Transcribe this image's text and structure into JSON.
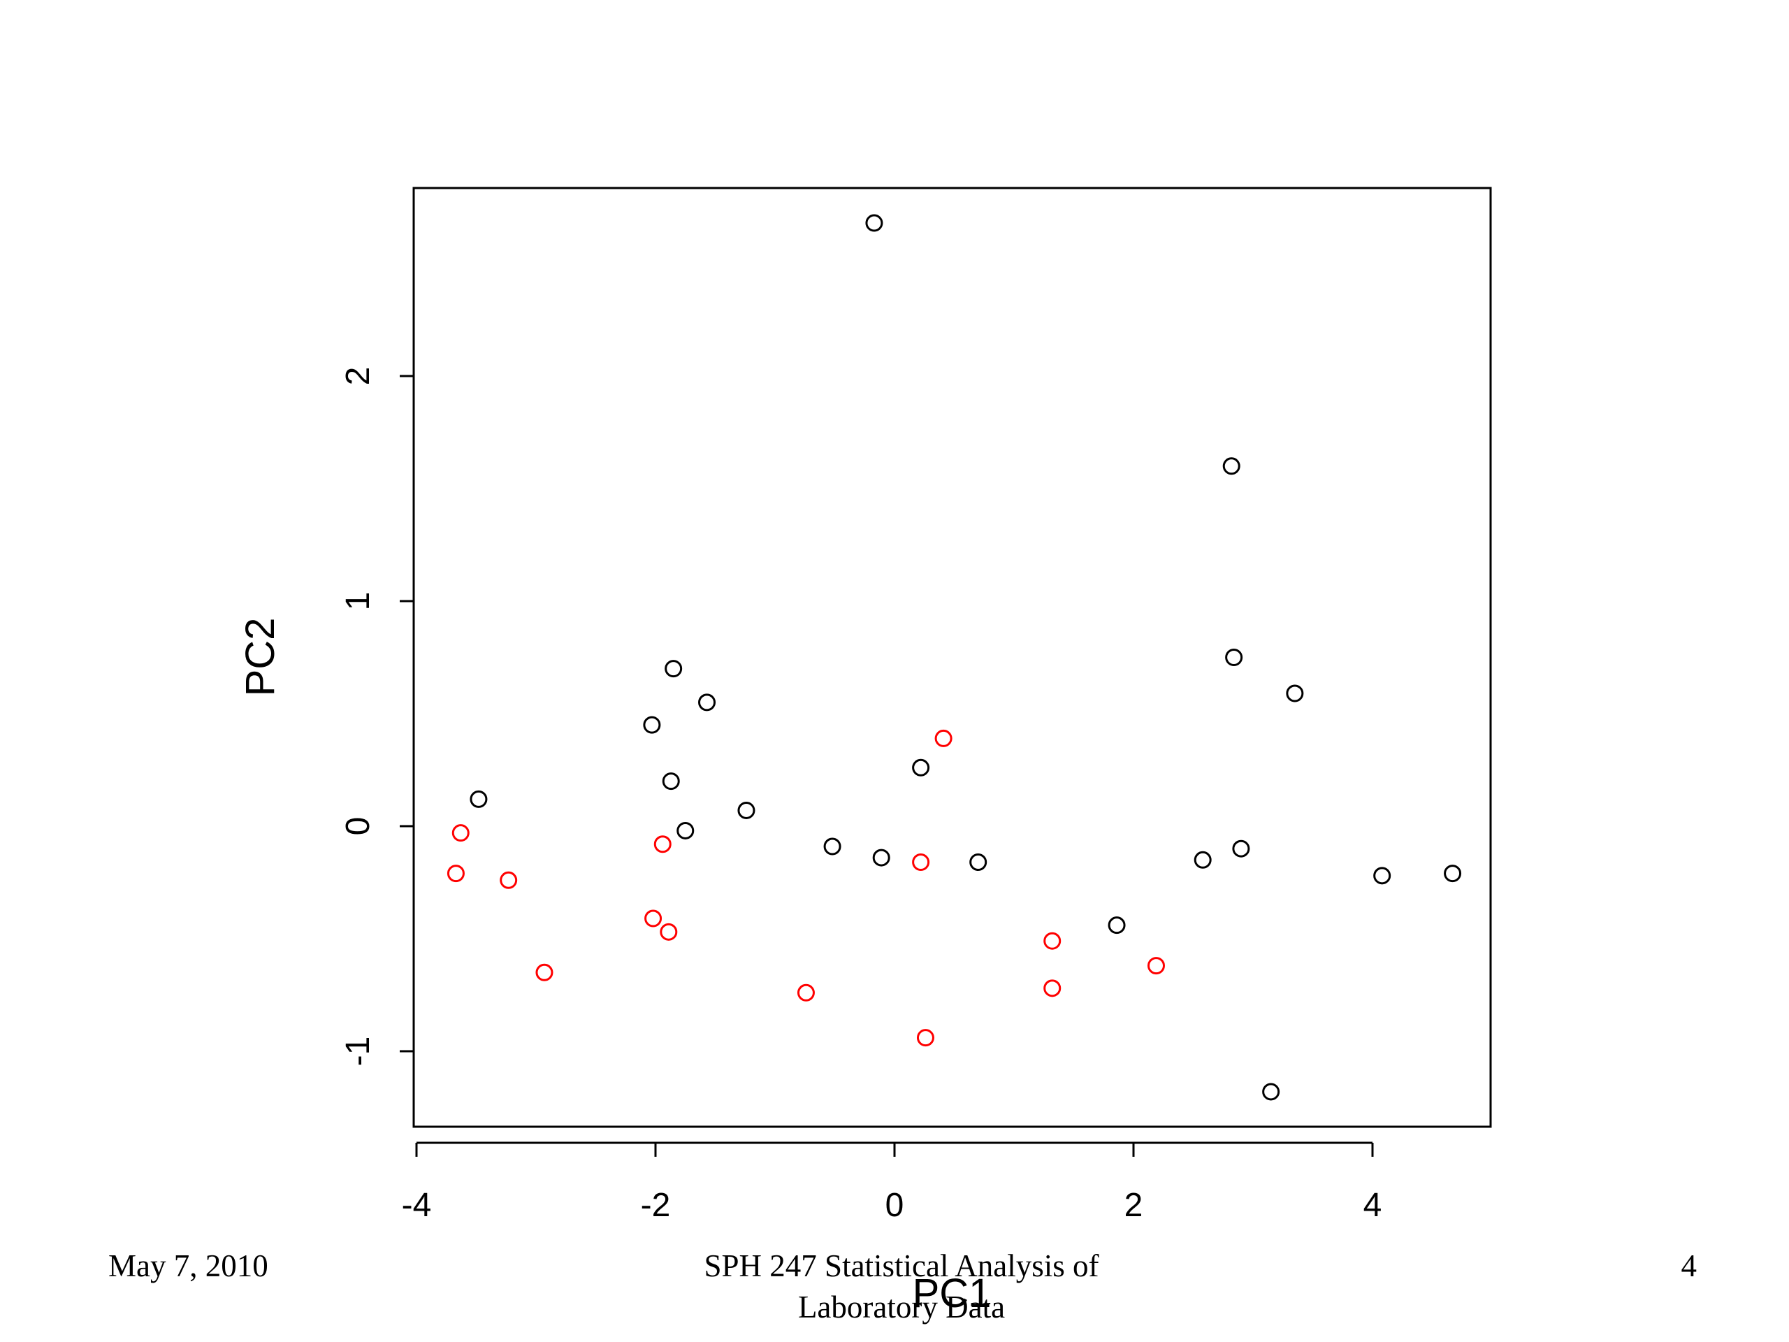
{
  "chart_data": {
    "type": "scatter",
    "xlabel": "PC1",
    "ylabel": "PC2",
    "xlim": [
      -4.0,
      5.0
    ],
    "ylim": [
      -1.33,
      2.85
    ],
    "xticks": [
      -4,
      -2,
      0,
      2,
      4
    ],
    "yticks": [
      -1,
      0,
      1,
      2
    ],
    "xtick_labels": [
      "-4",
      "-2",
      "0",
      "2",
      "4"
    ],
    "ytick_labels": [
      "-1",
      "0",
      "1",
      "2"
    ],
    "grid": false,
    "legend": null,
    "series": [
      {
        "color": "#000000",
        "marker": "open-circle",
        "points": [
          [
            -0.17,
            2.68
          ],
          [
            2.82,
            1.6
          ],
          [
            2.84,
            0.75
          ],
          [
            3.35,
            0.59
          ],
          [
            -1.85,
            0.7
          ],
          [
            -1.57,
            0.55
          ],
          [
            -2.03,
            0.45
          ],
          [
            0.22,
            0.26
          ],
          [
            -1.87,
            0.2
          ],
          [
            -3.48,
            0.12
          ],
          [
            -1.75,
            -0.02
          ],
          [
            -1.24,
            0.07
          ],
          [
            -0.52,
            -0.09
          ],
          [
            -0.11,
            -0.14
          ],
          [
            0.7,
            -0.16
          ],
          [
            2.58,
            -0.15
          ],
          [
            2.9,
            -0.1
          ],
          [
            4.08,
            -0.22
          ],
          [
            4.67,
            -0.21
          ],
          [
            1.86,
            -0.44
          ],
          [
            3.15,
            -1.18
          ]
        ]
      },
      {
        "color": "#ff0000",
        "marker": "open-circle",
        "points": [
          [
            -3.63,
            -0.03
          ],
          [
            -3.67,
            -0.21
          ],
          [
            -3.23,
            -0.24
          ],
          [
            -2.93,
            -0.65
          ],
          [
            -1.94,
            -0.08
          ],
          [
            -2.02,
            -0.41
          ],
          [
            -1.89,
            -0.47
          ],
          [
            -0.74,
            -0.74
          ],
          [
            0.22,
            -0.16
          ],
          [
            0.41,
            0.39
          ],
          [
            0.26,
            -0.94
          ],
          [
            1.32,
            -0.51
          ],
          [
            1.32,
            -0.72
          ],
          [
            2.19,
            -0.62
          ]
        ]
      }
    ]
  },
  "footer": {
    "date": "May 7, 2010",
    "title_line1": "SPH 247 Statistical Analysis of",
    "title_line2": "Laboratory Data",
    "page_number": "4"
  }
}
